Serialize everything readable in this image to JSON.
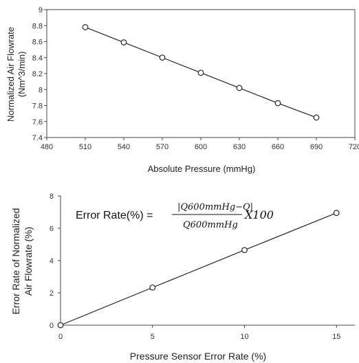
{
  "chart_data": [
    {
      "type": "line",
      "title": "",
      "xlabel": "Absolute Pressure (mmHg)",
      "ylabel_line1": "Normalized Air Flowrate",
      "ylabel_line2": "(Nm^3/min)",
      "xlim": [
        480,
        720
      ],
      "ylim": [
        7.4,
        9
      ],
      "xticks": [
        "480",
        "510",
        "540",
        "570",
        "600",
        "630",
        "660",
        "690",
        "720"
      ],
      "yticks": [
        "7.4",
        "7.6",
        "7.8",
        "8",
        "8.2",
        "8.4",
        "8.6",
        "8.8",
        "9"
      ],
      "x": [
        510,
        540,
        570,
        600,
        630,
        660,
        690
      ],
      "values": [
        8.78,
        8.59,
        8.4,
        8.21,
        8.02,
        7.83,
        7.65
      ],
      "marker": "open-circle",
      "grid": false,
      "color": "#222222"
    },
    {
      "type": "line",
      "title": "",
      "xlabel": "Pressure Sensor Error Rate (%)",
      "ylabel_line1": "Error Rate of Normalized",
      "ylabel_line2": "Air Flowrate (%)",
      "xlim": [
        0,
        16
      ],
      "ylim": [
        0,
        8
      ],
      "xticks": [
        "0",
        "5",
        "10",
        "15"
      ],
      "yticks": [
        "0",
        "2",
        "4",
        "6",
        "8"
      ],
      "x": [
        0,
        5,
        10,
        15
      ],
      "values": [
        0,
        2.33,
        4.65,
        6.95
      ],
      "marker": "open-circle",
      "grid": false,
      "color": "#222222",
      "annotation": {
        "prefix": "Error Rate(%) =",
        "numerator": "|Q600mmHg−Q|",
        "denominator": "Q600mmHg",
        "suffix": "X100"
      }
    }
  ]
}
